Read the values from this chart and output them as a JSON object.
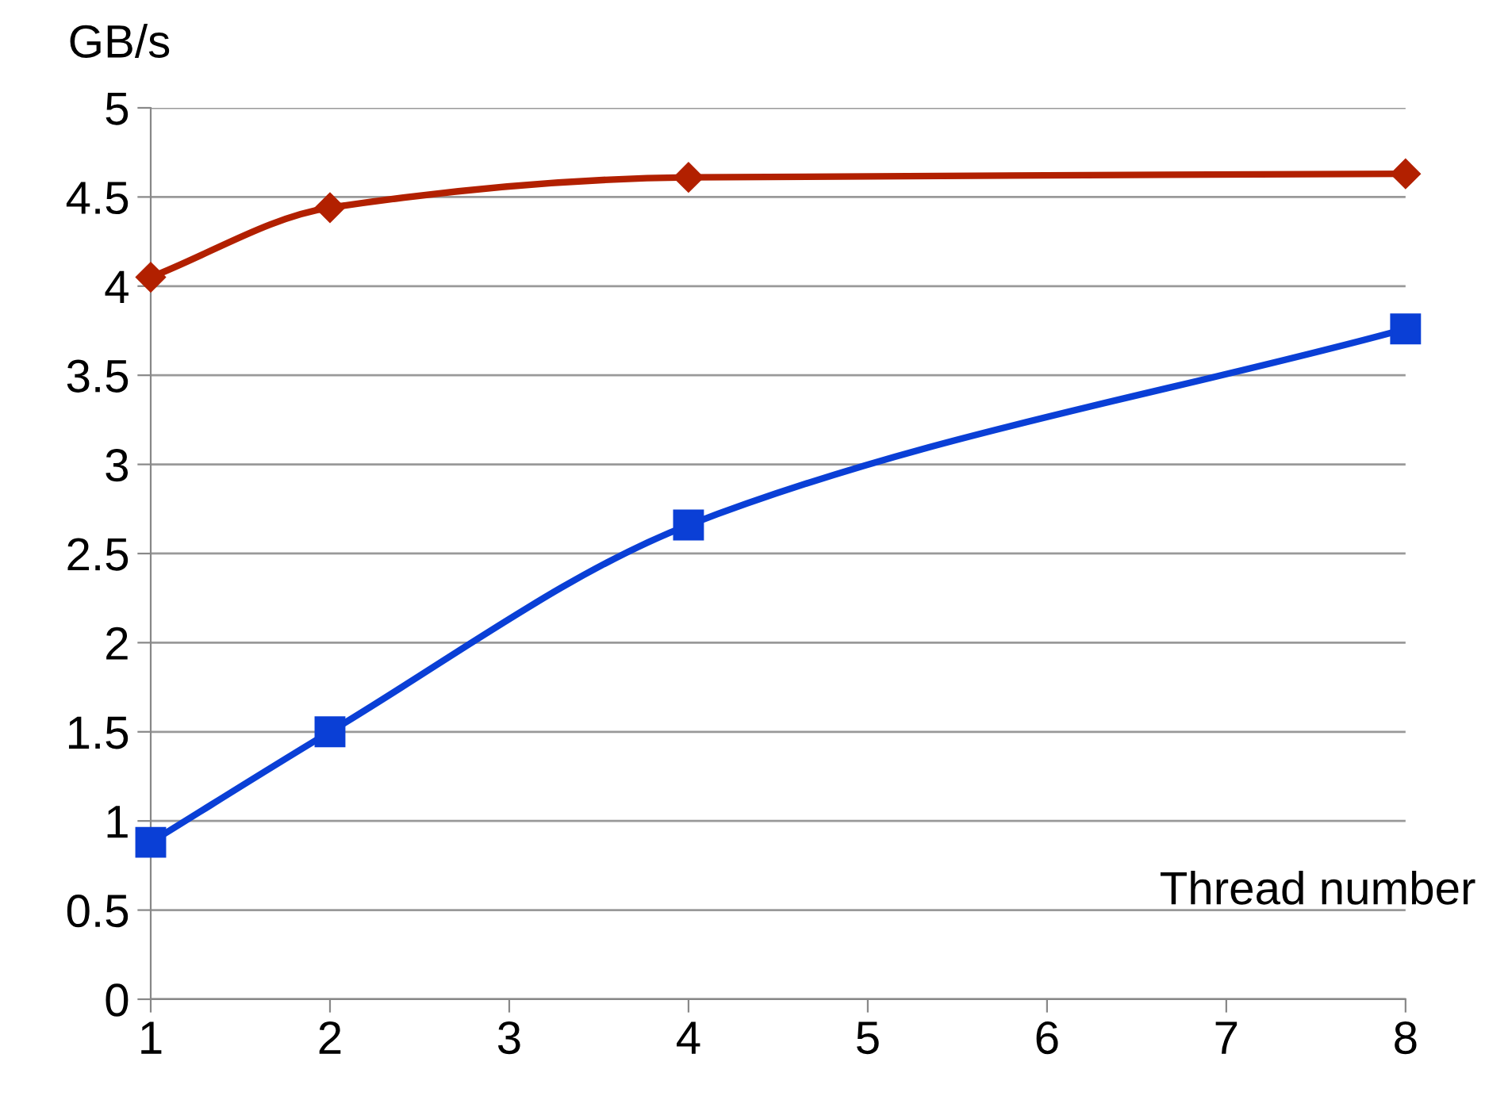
{
  "chart_data": {
    "type": "line",
    "xlabel": "Thread number",
    "ylabel": "GB/s",
    "x": [
      1,
      2,
      4,
      8
    ],
    "series": [
      {
        "color": "#b22000",
        "marker": "diamond",
        "values": [
          4.05,
          4.44,
          4.61,
          4.63
        ]
      },
      {
        "color": "#0a3fd6",
        "marker": "square",
        "values": [
          0.88,
          1.5,
          2.66,
          3.76
        ]
      }
    ],
    "xlim": [
      1,
      8
    ],
    "xticks": [
      1,
      2,
      3,
      4,
      5,
      6,
      7,
      8
    ],
    "ylim": [
      0,
      5
    ],
    "yticks": [
      0,
      0.5,
      1,
      1.5,
      2,
      2.5,
      3,
      3.5,
      4,
      4.5,
      5
    ],
    "grid": "y",
    "line_style": "solid"
  }
}
